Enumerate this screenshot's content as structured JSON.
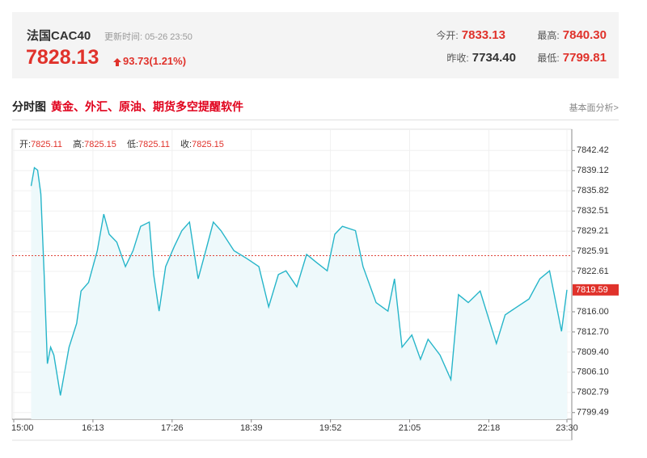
{
  "header": {
    "title": "法国CAC40",
    "updated": "更新时间: 05-26 23:50",
    "price": "7828.13",
    "change": "93.73(1.21%)",
    "stats": [
      {
        "label": "今开:",
        "value": "7833.13"
      },
      {
        "label": "最高:",
        "value": "7840.30"
      },
      {
        "label": "昨收:",
        "value": "7734.40"
      },
      {
        "label": "最低:",
        "value": "7799.81"
      }
    ]
  },
  "section": {
    "title": "分时图",
    "promo": "黄金、外汇、原油、期货多空提醒软件",
    "link": "基本面分析>"
  },
  "ohlc": [
    {
      "label": "开:",
      "value": "7825.11"
    },
    {
      "label": "高:",
      "value": "7825.15"
    },
    {
      "label": "低:",
      "value": "7825.11"
    },
    {
      "label": "收:",
      "value": "7825.15"
    }
  ],
  "chart_data": {
    "type": "line",
    "color": "#26b5c9",
    "area_color": "#eef9fb",
    "reference_line": 7825.2,
    "reference_color": "#e0463b",
    "last_color": "#e0322b",
    "grid": true,
    "x": [
      "15:16",
      "15:19",
      "15:22",
      "15:25",
      "15:28",
      "15:31",
      "15:34",
      "15:37",
      "15:43",
      "15:51",
      "15:58",
      "16:02",
      "16:09",
      "16:17",
      "16:23",
      "16:28",
      "16:35",
      "16:43",
      "16:50",
      "16:57",
      "17:05",
      "17:09",
      "17:14",
      "17:20",
      "17:28",
      "17:35",
      "17:42",
      "17:50",
      "17:57",
      "18:04",
      "18:11",
      "18:23",
      "18:35",
      "18:46",
      "18:55",
      "19:04",
      "19:11",
      "19:21",
      "19:30",
      "19:39",
      "19:49",
      "19:56",
      "20:03",
      "20:15",
      "20:22",
      "20:34",
      "20:45",
      "20:51",
      "20:58",
      "21:07",
      "21:15",
      "21:22",
      "21:33",
      "21:43",
      "21:50",
      "21:59",
      "22:10",
      "22:18",
      "22:25",
      "22:33",
      "22:44",
      "22:55",
      "23:05",
      "23:14",
      "23:25",
      "23:30"
    ],
    "values": [
      7836.6,
      7839.6,
      7839.2,
      7835.3,
      7822.1,
      7807.5,
      7810.2,
      7808.9,
      7802.3,
      7810.2,
      7814.1,
      7819.4,
      7820.8,
      7826.0,
      7832.0,
      7828.7,
      7827.4,
      7823.4,
      7826.0,
      7830.0,
      7830.7,
      7822.1,
      7816.1,
      7823.4,
      7826.7,
      7829.3,
      7830.7,
      7821.4,
      7826.0,
      7830.7,
      7829.3,
      7826.0,
      7824.7,
      7823.4,
      7816.8,
      7822.1,
      7822.7,
      7820.1,
      7825.4,
      7824.1,
      7822.7,
      7828.7,
      7830.0,
      7829.3,
      7823.4,
      7817.5,
      7816.1,
      7821.4,
      7810.2,
      7812.2,
      7808.2,
      7811.5,
      7808.9,
      7804.9,
      7818.8,
      7817.5,
      7819.4,
      7814.8,
      7810.8,
      7815.5,
      7816.8,
      7818.1,
      7821.4,
      7822.7,
      7812.8,
      7819.59
    ],
    "xlim": [
      "15:00",
      "23:30"
    ],
    "xticks": [
      "15:00",
      "16:13",
      "17:26",
      "18:39",
      "19:52",
      "21:05",
      "22:18",
      "23:30"
    ],
    "ylim": [
      7798.4,
      7845.9
    ],
    "yticks": [
      {
        "value": 7799.49,
        "label": "7799.49"
      },
      7802.79,
      {
        "value": 7806.1,
        "label": "7806.10"
      },
      {
        "value": 7809.4,
        "label": "7809.40"
      },
      {
        "value": 7812.7,
        "label": "7812.70"
      },
      {
        "value": 7816.0,
        "label": "7816.00"
      },
      7822.61,
      7825.91,
      7829.21,
      7832.51,
      7835.82,
      7839.12,
      7842.42
    ]
  }
}
